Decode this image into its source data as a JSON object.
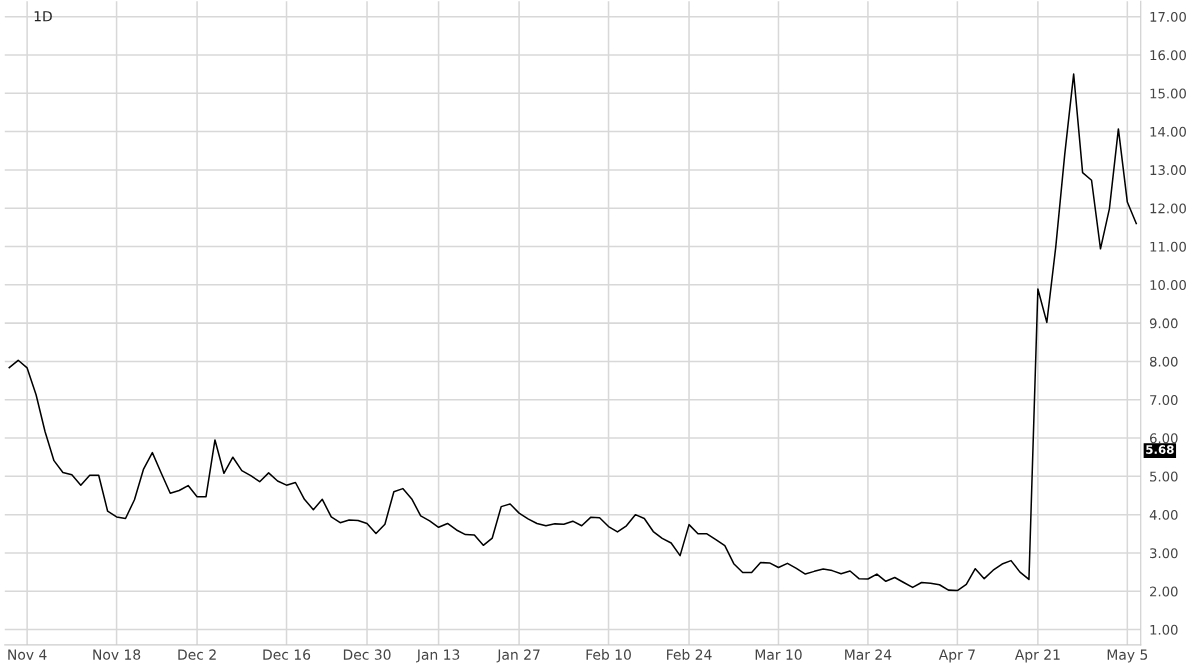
{
  "chart_data": {
    "type": "line",
    "categories": [
      null,
      null,
      "Nov 4",
      null,
      null,
      null,
      null,
      null,
      null,
      null,
      null,
      null,
      "Nov 18",
      null,
      null,
      null,
      null,
      null,
      null,
      null,
      null,
      "Dec 2",
      null,
      null,
      null,
      null,
      null,
      null,
      null,
      null,
      null,
      "Dec 16",
      null,
      null,
      null,
      null,
      null,
      null,
      null,
      null,
      "Dec 30",
      null,
      null,
      null,
      null,
      null,
      null,
      null,
      "Jan 13",
      null,
      null,
      null,
      null,
      null,
      null,
      null,
      null,
      "Jan 27",
      null,
      null,
      null,
      null,
      null,
      null,
      null,
      null,
      null,
      "Feb 10",
      null,
      null,
      null,
      null,
      null,
      null,
      null,
      null,
      "Feb 24",
      null,
      null,
      null,
      null,
      null,
      null,
      null,
      null,
      null,
      "Mar 10",
      null,
      null,
      null,
      null,
      null,
      null,
      null,
      null,
      null,
      "Mar 24",
      null,
      null,
      null,
      null,
      null,
      null,
      null,
      null,
      null,
      "Apr 7",
      null,
      null,
      null,
      null,
      null,
      null,
      null,
      null,
      "Apr 21",
      null,
      null,
      null,
      null,
      null,
      null,
      null,
      null,
      null,
      "May 5",
      null
    ],
    "series": [
      {
        "color": "#000000",
        "values": [
          7.84,
          8.03,
          7.83,
          7.13,
          6.17,
          5.41,
          5.1,
          5.04,
          4.77,
          5.03,
          5.03,
          4.09,
          3.94,
          3.9,
          4.39,
          5.18,
          5.62,
          5.08,
          4.56,
          4.63,
          4.76,
          4.47,
          4.47,
          5.95,
          5.08,
          5.5,
          5.15,
          5.02,
          4.86,
          5.09,
          4.88,
          4.77,
          4.84,
          4.4,
          4.13,
          4.4,
          3.94,
          3.79,
          3.86,
          3.85,
          3.77,
          3.51,
          3.75,
          4.6,
          4.68,
          4.41,
          3.97,
          3.84,
          3.67,
          3.77,
          3.6,
          3.48,
          3.47,
          3.2,
          3.39,
          4.21,
          4.28,
          4.04,
          3.89,
          3.77,
          3.71,
          3.76,
          3.75,
          3.83,
          3.71,
          3.93,
          3.92,
          3.69,
          3.55,
          3.71,
          4.0,
          3.9,
          3.56,
          3.38,
          3.26,
          2.93,
          3.74,
          3.5,
          3.5,
          3.35,
          3.19,
          2.72,
          2.49,
          2.49,
          2.75,
          2.74,
          2.62,
          2.73,
          2.6,
          2.45,
          2.52,
          2.58,
          2.54,
          2.46,
          2.53,
          2.33,
          2.32,
          2.45,
          2.26,
          2.36,
          2.23,
          2.1,
          2.23,
          2.21,
          2.17,
          2.03,
          2.02,
          2.18,
          2.59,
          2.33,
          2.55,
          2.71,
          2.8,
          2.5,
          2.31,
          9.89,
          9.02,
          10.99,
          13.4,
          15.5,
          12.93,
          12.73,
          10.94,
          11.99,
          14.07,
          12.16,
          11.6
        ]
      }
    ],
    "ylim": [
      0.6,
      17.4
    ],
    "yticks": [
      {
        "value": 1,
        "label": "1.00"
      },
      {
        "value": 2,
        "label": "2.00"
      },
      {
        "value": 3,
        "label": "3.00"
      },
      {
        "value": 4,
        "label": "4.00"
      },
      {
        "value": 5,
        "label": "5.00"
      },
      {
        "value": 6,
        "label": "6.00"
      },
      {
        "value": 7,
        "label": "7.00"
      },
      {
        "value": 8,
        "label": "8.00"
      },
      {
        "value": 9,
        "label": "9.00"
      },
      {
        "value": 10,
        "label": "10.00"
      },
      {
        "value": 11,
        "label": "11.00"
      },
      {
        "value": 12,
        "label": "12.00"
      },
      {
        "value": 13,
        "label": "13.00"
      },
      {
        "value": 14,
        "label": "14.00"
      },
      {
        "value": 15,
        "label": "15.00"
      },
      {
        "value": 16,
        "label": "16.00"
      },
      {
        "value": 17,
        "label": "17.00"
      }
    ],
    "grid": true,
    "marker": "none",
    "line_style": "solid",
    "annotations": [
      "1D",
      "5.68"
    ]
  }
}
